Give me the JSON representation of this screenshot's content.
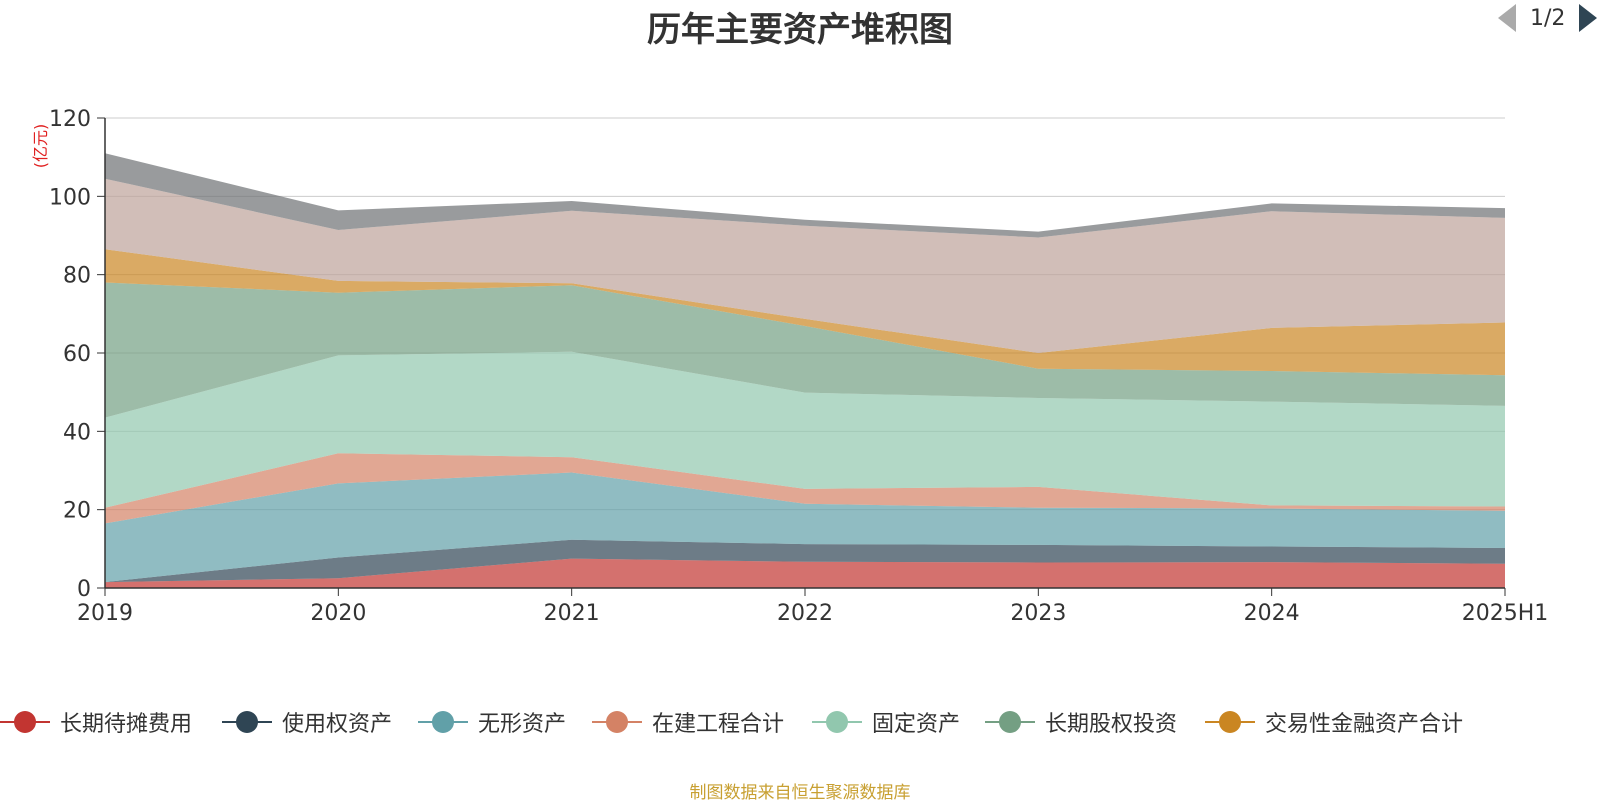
{
  "chart_data": {
    "type": "area",
    "stacked": true,
    "title": "历年主要资产堆积图",
    "unit_label": "(亿元)",
    "categories": [
      "2019",
      "2020",
      "2021",
      "2022",
      "2023",
      "2024",
      "2025H1"
    ],
    "ylim": [
      0,
      120
    ],
    "yticks": [
      0,
      20,
      40,
      60,
      80,
      100,
      120
    ],
    "grid": true,
    "legend_position": "bottom",
    "series": [
      {
        "name": "长期待摊费用",
        "color": "#c23531",
        "values": [
          1.5,
          2.5,
          7.5,
          6.7,
          6.5,
          6.6,
          6.2
        ]
      },
      {
        "name": "使用权资产",
        "color": "#2f4554",
        "values": [
          0,
          5.3,
          4.8,
          4.5,
          4.5,
          4.0,
          4.0
        ]
      },
      {
        "name": "无形资产",
        "color": "#61a0a8",
        "values": [
          15.0,
          18.9,
          17.2,
          10.3,
          9.5,
          9.7,
          9.5
        ]
      },
      {
        "name": "在建工程合计",
        "color": "#d48265",
        "values": [
          4.0,
          7.7,
          3.9,
          3.8,
          5.3,
          0.8,
          1.1
        ]
      },
      {
        "name": "固定资产",
        "color": "#91c7ae",
        "values": [
          23.0,
          25.0,
          26.9,
          24.6,
          22.7,
          26.5,
          25.7
        ]
      },
      {
        "name": "长期股权投资",
        "color": "#749f83",
        "values": [
          34.5,
          16.0,
          17.0,
          17.0,
          7.5,
          7.8,
          7.8
        ]
      },
      {
        "name": "交易性金融资产合计",
        "color": "#ca8622",
        "values": [
          8.5,
          3.0,
          0.5,
          1.8,
          4.0,
          11.0,
          13.5
        ]
      },
      {
        "name": "",
        "color": "#bda29a",
        "values": [
          18.0,
          13.0,
          18.5,
          23.8,
          29.5,
          29.8,
          26.7
        ]
      },
      {
        "name": "",
        "color": "#6e7074",
        "values": [
          6.5,
          5.0,
          2.5,
          1.5,
          1.5,
          2.0,
          2.5
        ]
      }
    ]
  },
  "legend": {
    "pager": "1/2"
  },
  "footnote": "制图数据来自恒生聚源数据库"
}
